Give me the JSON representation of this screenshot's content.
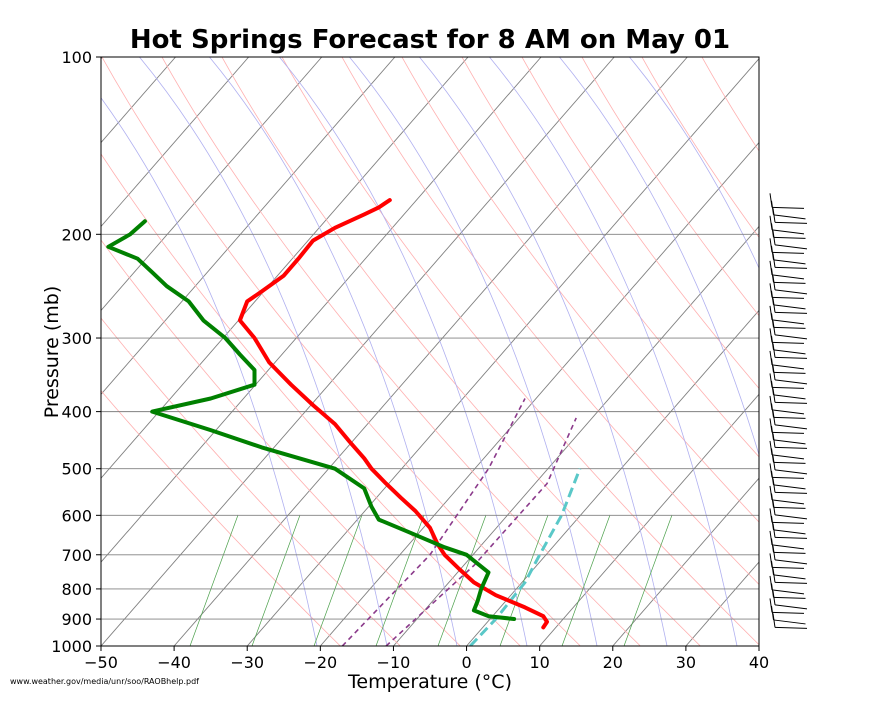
{
  "chart_data": {
    "type": "line",
    "title": "Hot Springs Forecast for 8 AM on May 01",
    "xlabel": "Temperature (°C)",
    "ylabel": "Pressure (mb)",
    "credit": "www.weather.gov/media/unr/soo/RAOBhelp.pdf",
    "xlim": [
      -50,
      40
    ],
    "ylim": [
      1000,
      100
    ],
    "yscale": "log",
    "x_ticks": [
      "−50",
      "−40",
      "−30",
      "−20",
      "−10",
      "0",
      "10",
      "20",
      "30",
      "40"
    ],
    "y_ticks": [
      "1000",
      "900",
      "800",
      "700",
      "600",
      "500",
      "400",
      "300",
      "200",
      "100"
    ],
    "grid": true,
    "series": [
      {
        "color": "#ff0000",
        "points": [
          [
            10.5,
            930
          ],
          [
            11,
            910
          ],
          [
            10.5,
            890
          ],
          [
            8,
            860
          ],
          [
            4,
            820
          ],
          [
            1,
            780
          ],
          [
            -1,
            740
          ],
          [
            -3,
            700
          ],
          [
            -4,
            670
          ],
          [
            -5,
            630
          ],
          [
            -7,
            590
          ],
          [
            -9,
            560
          ],
          [
            -11,
            530
          ],
          [
            -13,
            500
          ],
          [
            -14,
            480
          ],
          [
            -16,
            450
          ],
          [
            -18,
            420
          ],
          [
            -21,
            390
          ],
          [
            -24,
            360
          ],
          [
            -27,
            330
          ],
          [
            -29,
            300
          ],
          [
            -31,
            280
          ],
          [
            -30,
            260
          ],
          [
            -28,
            250
          ],
          [
            -25,
            235
          ],
          [
            -23,
            220
          ],
          [
            -21,
            205
          ],
          [
            -18,
            195
          ],
          [
            -14,
            185
          ],
          [
            -12,
            180
          ],
          [
            -10.5,
            175
          ]
        ]
      },
      {
        "color": "#008000",
        "points": [
          [
            6.5,
            900
          ],
          [
            3,
            890
          ],
          [
            1,
            870
          ],
          [
            1.5,
            840
          ],
          [
            2,
            800
          ],
          [
            3,
            750
          ],
          [
            0,
            700
          ],
          [
            -3,
            680
          ],
          [
            -8,
            640
          ],
          [
            -12,
            610
          ],
          [
            -13,
            580
          ],
          [
            -14,
            540
          ],
          [
            -18,
            500
          ],
          [
            -28,
            460
          ],
          [
            -35,
            430
          ],
          [
            -43,
            400
          ],
          [
            -35,
            380
          ],
          [
            -29,
            360
          ],
          [
            -29,
            340
          ],
          [
            -31,
            320
          ],
          [
            -33,
            300
          ],
          [
            -36,
            280
          ],
          [
            -38,
            260
          ],
          [
            -41,
            245
          ],
          [
            -43,
            232
          ],
          [
            -45,
            220
          ],
          [
            -49,
            210
          ],
          [
            -46,
            200
          ],
          [
            -44,
            190
          ]
        ]
      }
    ],
    "reference_lines": [
      {
        "color": "#8b3a8b",
        "style": "dashed",
        "points": [
          [
            -17,
            1000
          ],
          [
            -5,
            700
          ],
          [
            3,
            500
          ],
          [
            8,
            380
          ]
        ]
      },
      {
        "color": "#8b3a8b",
        "style": "dashed",
        "points": [
          [
            -11,
            1000
          ],
          [
            1,
            730
          ],
          [
            11,
            530
          ],
          [
            15,
            410
          ]
        ]
      },
      {
        "color": "#5ac8c8",
        "style": "dashed",
        "points": [
          [
            0.5,
            1000
          ],
          [
            4,
            900
          ],
          [
            8,
            780
          ],
          [
            10,
            700
          ],
          [
            13,
            600
          ],
          [
            15.5,
            500
          ]
        ]
      }
    ],
    "wind_barbs": {
      "p_top": 180,
      "p_bottom": 930,
      "count": 57
    }
  }
}
